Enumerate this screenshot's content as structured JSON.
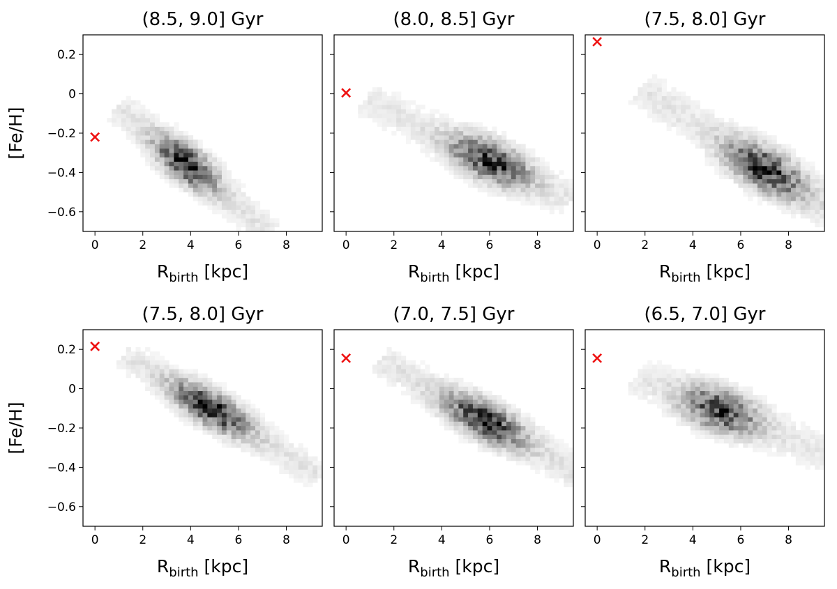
{
  "chart_data": [
    {
      "type": "heatmap",
      "title": "(8.5, 9.0] Gyr",
      "xlabel_main": "R",
      "xlabel_sub": "birth",
      "xlabel_unit": " [kpc]",
      "ylabel": "[Fe/H]",
      "xlim": [
        -0.5,
        9.5
      ],
      "ylim": [
        -0.7,
        0.3
      ],
      "xticks": [
        0,
        2,
        4,
        6,
        8
      ],
      "yticks": [
        -0.6,
        -0.4,
        -0.2,
        0.0,
        0.2
      ],
      "show_yticklabels": true,
      "show_xticklabels": true,
      "marker": {
        "x": 0,
        "y": -0.22
      },
      "density": {
        "x0": 1.2,
        "y0": -0.09,
        "x1": 7.0,
        "y1": -0.68,
        "width": 0.05,
        "peak": 0.45,
        "peak_intensity": 0.85
      }
    },
    {
      "type": "heatmap",
      "title": "(8.0, 8.5] Gyr",
      "xlabel_main": "R",
      "xlabel_sub": "birth",
      "xlabel_unit": " [kpc]",
      "ylabel": "",
      "xlim": [
        -0.5,
        9.5
      ],
      "ylim": [
        -0.7,
        0.3
      ],
      "xticks": [
        0,
        2,
        4,
        6,
        8
      ],
      "yticks": [
        -0.6,
        -0.4,
        -0.2,
        0.0,
        0.2
      ],
      "show_yticklabels": false,
      "show_xticklabels": true,
      "marker": {
        "x": 0,
        "y": 0.005
      },
      "density": {
        "x0": 1.2,
        "y0": -0.05,
        "x1": 9.0,
        "y1": -0.52,
        "width": 0.06,
        "peak": 0.62,
        "peak_intensity": 0.8
      }
    },
    {
      "type": "heatmap",
      "title": "(7.5, 8.0] Gyr",
      "xlabel_main": "R",
      "xlabel_sub": "birth",
      "xlabel_unit": " [kpc]",
      "ylabel": "",
      "xlim": [
        -0.5,
        9.5
      ],
      "ylim": [
        -0.7,
        0.3
      ],
      "xticks": [
        0,
        2,
        4,
        6,
        8
      ],
      "yticks": [
        -0.6,
        -0.4,
        -0.2,
        0.0,
        0.2
      ],
      "show_yticklabels": false,
      "show_xticklabels": true,
      "marker": {
        "x": 0,
        "y": 0.265
      },
      "density": {
        "x0": 2.2,
        "y0": 0.0,
        "x1": 9.5,
        "y1": -0.58,
        "width": 0.06,
        "peak": 0.66,
        "peak_intensity": 0.85
      }
    },
    {
      "type": "heatmap",
      "title": "(7.5, 8.0] Gyr",
      "xlabel_main": "R",
      "xlabel_sub": "birth",
      "xlabel_unit": " [kpc]",
      "ylabel": "[Fe/H]",
      "xlim": [
        -0.5,
        9.5
      ],
      "ylim": [
        -0.7,
        0.3
      ],
      "xticks": [
        0,
        2,
        4,
        6,
        8
      ],
      "yticks": [
        -0.6,
        -0.4,
        -0.2,
        0.0,
        0.2
      ],
      "show_yticklabels": true,
      "show_xticklabels": true,
      "marker": {
        "x": 0,
        "y": 0.215
      },
      "density": {
        "x0": 1.6,
        "y0": 0.15,
        "x1": 9.0,
        "y1": -0.42,
        "width": 0.05,
        "peak": 0.44,
        "peak_intensity": 0.85
      }
    },
    {
      "type": "heatmap",
      "title": "(7.0, 7.5] Gyr",
      "xlabel_main": "R",
      "xlabel_sub": "birth",
      "xlabel_unit": " [kpc]",
      "ylabel": "",
      "xlim": [
        -0.5,
        9.5
      ],
      "ylim": [
        -0.7,
        0.3
      ],
      "xticks": [
        0,
        2,
        4,
        6,
        8
      ],
      "yticks": [
        -0.6,
        -0.4,
        -0.2,
        0.0,
        0.2
      ],
      "show_yticklabels": false,
      "show_xticklabels": true,
      "marker": {
        "x": 0,
        "y": 0.155
      },
      "density": {
        "x0": 1.8,
        "y0": 0.12,
        "x1": 9.5,
        "y1": -0.42,
        "width": 0.055,
        "peak": 0.52,
        "peak_intensity": 0.85
      }
    },
    {
      "type": "heatmap",
      "title": "(6.5, 7.0] Gyr",
      "xlabel_main": "R",
      "xlabel_sub": "birth",
      "xlabel_unit": " [kpc]",
      "ylabel": "",
      "xlim": [
        -0.5,
        9.5
      ],
      "ylim": [
        -0.7,
        0.3
      ],
      "xticks": [
        0,
        2,
        4,
        6,
        8
      ],
      "yticks": [
        -0.6,
        -0.4,
        -0.2,
        0.0,
        0.2
      ],
      "show_yticklabels": false,
      "show_xticklabels": true,
      "marker": {
        "x": 0,
        "y": 0.155
      },
      "density": {
        "x0": 2.0,
        "y0": 0.05,
        "x1": 9.5,
        "y1": -0.33,
        "width": 0.065,
        "peak": 0.42,
        "peak_intensity": 0.75
      }
    }
  ],
  "colors": {
    "marker": "#ee1111",
    "frame": "#000000",
    "histogram": "#000000"
  }
}
